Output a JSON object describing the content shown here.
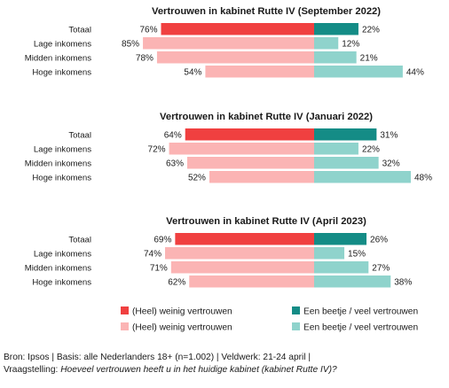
{
  "chart_data": [
    {
      "type": "bar",
      "orientation": "diverging-horizontal",
      "title": "Vertrouwen in kabinet Rutte IV (September 2022)",
      "categories": [
        "Totaal",
        "Lage inkomens",
        "Midden inkomens",
        "Hoge inkomens"
      ],
      "series": [
        {
          "name": "(Heel) weinig vertrouwen",
          "values": [
            76,
            85,
            78,
            54
          ]
        },
        {
          "name": "Een beetje / veel vertrouwen",
          "values": [
            22,
            12,
            21,
            44
          ]
        }
      ],
      "value_suffix": "%"
    },
    {
      "type": "bar",
      "orientation": "diverging-horizontal",
      "title": "Vertrouwen in kabinet Rutte IV (Januari 2022)",
      "categories": [
        "Totaal",
        "Lage inkomens",
        "Midden inkomens",
        "Hoge inkomens"
      ],
      "series": [
        {
          "name": "(Heel) weinig vertrouwen",
          "values": [
            64,
            72,
            63,
            52
          ]
        },
        {
          "name": "Een beetje / veel vertrouwen",
          "values": [
            31,
            22,
            32,
            48
          ]
        }
      ],
      "value_suffix": "%"
    },
    {
      "type": "bar",
      "orientation": "diverging-horizontal",
      "title": "Vertrouwen in kabinet Rutte IV (April 2023)",
      "categories": [
        "Totaal",
        "Lage inkomens",
        "Midden inkomens",
        "Hoge inkomens"
      ],
      "series": [
        {
          "name": "(Heel) weinig vertrouwen",
          "values": [
            69,
            74,
            71,
            62
          ]
        },
        {
          "name": "Een beetje / veel vertrouwen",
          "values": [
            26,
            15,
            27,
            38
          ]
        }
      ],
      "value_suffix": "%"
    }
  ],
  "legend": {
    "items": [
      {
        "label": "(Heel) weinig vertrouwen",
        "color": "#f04040"
      },
      {
        "label": "Een beetje / veel vertrouwen",
        "color": "#148c86"
      },
      {
        "label": "(Heel) weinig vertrouwen",
        "color": "#fbb4b4"
      },
      {
        "label": "Een beetje / veel vertrouwen",
        "color": "#8fd3cc"
      }
    ]
  },
  "colors": {
    "total_negative": "#f04040",
    "total_positive": "#148c86",
    "group_negative": "#fbb4b4",
    "group_positive": "#8fd3cc"
  },
  "footer": {
    "source": "Bron: Ipsos | Basis: alle Nederlanders 18+ (n=1.002) | Veldwerk: 21-24 april |",
    "question_prefix": "Vraagstelling: ",
    "question": "Hoeveel vertrouwen heeft u in het huidige kabinet (kabinet Rutte IV)?"
  }
}
